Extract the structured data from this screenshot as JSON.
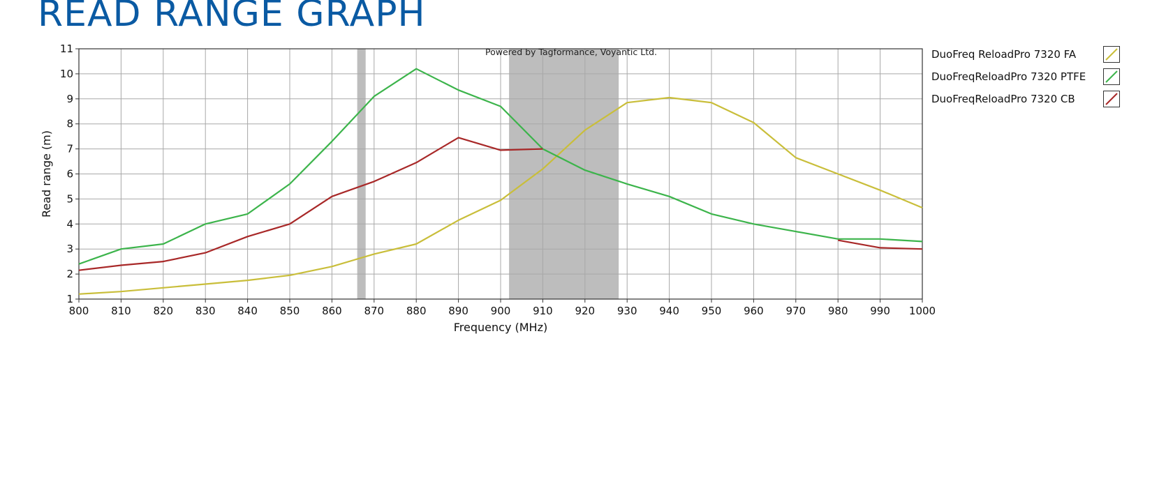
{
  "page": {
    "title": "READ RANGE GRAPH"
  },
  "chart_data": {
    "type": "line",
    "credit": "Powered by Tagformance, Voyantic Ltd.",
    "xlabel": "Frequency (MHz)",
    "ylabel": "Read range (m)",
    "xlim": [
      800,
      1000
    ],
    "ylim": [
      1,
      11
    ],
    "xticks": [
      800,
      810,
      820,
      830,
      840,
      850,
      860,
      870,
      880,
      890,
      900,
      910,
      920,
      930,
      940,
      950,
      960,
      970,
      980,
      990,
      1000
    ],
    "yticks": [
      1,
      2,
      3,
      4,
      5,
      6,
      7,
      8,
      9,
      10,
      11
    ],
    "grid": true,
    "legend_position": "right",
    "shaded_bands": [
      [
        866,
        868
      ],
      [
        902,
        928
      ]
    ],
    "band_color": "#bdbdbd",
    "series": [
      {
        "name": "DuoFreq ReloadPro 7320 FA",
        "color": "#c9be3a",
        "points": [
          [
            800,
            1.2
          ],
          [
            810,
            1.3
          ],
          [
            820,
            1.45
          ],
          [
            830,
            1.6
          ],
          [
            840,
            1.75
          ],
          [
            850,
            1.95
          ],
          [
            860,
            2.3
          ],
          [
            870,
            2.8
          ],
          [
            880,
            3.2
          ],
          [
            890,
            4.15
          ],
          [
            900,
            4.95
          ],
          [
            910,
            6.2
          ],
          [
            920,
            7.75
          ],
          [
            930,
            8.85
          ],
          [
            940,
            9.05
          ],
          [
            950,
            8.85
          ],
          [
            960,
            8.05
          ],
          [
            970,
            6.65
          ],
          [
            980,
            6.0
          ],
          [
            990,
            5.35
          ],
          [
            1000,
            4.65
          ]
        ]
      },
      {
        "name": "DuoFreqReloadPro 7320 PTFE",
        "color": "#3cb44b",
        "points": [
          [
            800,
            2.4
          ],
          [
            810,
            3.0
          ],
          [
            820,
            3.2
          ],
          [
            830,
            4.0
          ],
          [
            840,
            4.4
          ],
          [
            850,
            5.6
          ],
          [
            860,
            7.3
          ],
          [
            870,
            9.1
          ],
          [
            880,
            10.2
          ],
          [
            890,
            9.35
          ],
          [
            900,
            8.7
          ],
          [
            910,
            7.0
          ],
          [
            920,
            6.15
          ],
          [
            930,
            5.6
          ],
          [
            940,
            5.1
          ],
          [
            950,
            4.4
          ],
          [
            960,
            4.0
          ],
          [
            970,
            3.7
          ],
          [
            980,
            3.4
          ],
          [
            990,
            3.4
          ],
          [
            1000,
            3.3
          ]
        ]
      },
      {
        "name": "DuoFreqReloadPro 7320 CB",
        "color": "#a82828",
        "segments": [
          [
            [
              800,
              2.15
            ],
            [
              810,
              2.35
            ],
            [
              820,
              2.5
            ],
            [
              830,
              2.85
            ],
            [
              840,
              3.5
            ],
            [
              850,
              4.0
            ],
            [
              860,
              5.1
            ],
            [
              870,
              5.7
            ],
            [
              880,
              6.45
            ],
            [
              890,
              7.45
            ],
            [
              900,
              6.95
            ],
            [
              910,
              7.0
            ]
          ],
          [
            [
              980,
              3.35
            ],
            [
              990,
              3.05
            ],
            [
              1000,
              3.0
            ]
          ]
        ]
      }
    ]
  }
}
